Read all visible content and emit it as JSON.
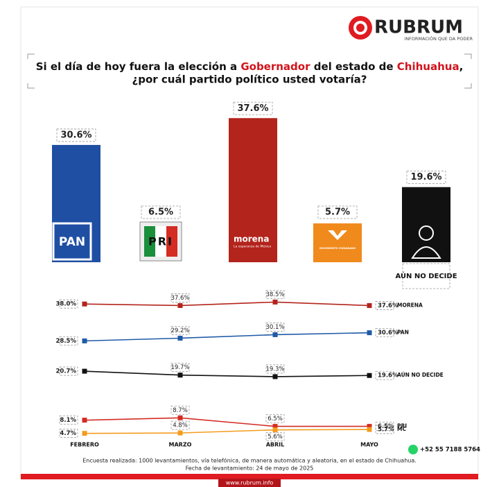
{
  "header": {
    "brand": "RUBRUM",
    "tagline": "INFORMACIÓN QUE DA PODER"
  },
  "title": {
    "line1": [
      "Si el día de hoy fuera la elección a ",
      "Gobernador",
      " del estado de ",
      "Chihuahua",
      ","
    ],
    "line2": "¿por cuál partido político usted votaría?"
  },
  "chart_data": [
    {
      "type": "bar",
      "categories": [
        "PAN",
        "PRI",
        "morena",
        "MOVIMIENTO CIUDADANO",
        "AÚN NO DECIDE"
      ],
      "values": [
        30.6,
        6.5,
        37.6,
        5.7,
        19.6
      ],
      "value_labels": [
        "30.6%",
        "6.5%",
        "37.6%",
        "5.7%",
        "19.6%"
      ],
      "colors": [
        "#1f4fa3",
        "#ffffff",
        "#b3241c",
        "#f08a1c",
        "#111111"
      ],
      "morena_tagline": "La esperanza de México",
      "ylim": [
        0,
        40
      ]
    },
    {
      "type": "line",
      "categories": [
        "FEBRERO",
        "MARZO",
        "ABRIL",
        "MAYO"
      ],
      "ylim": [
        0,
        40
      ],
      "series": [
        {
          "name": "MORENA",
          "color": "#b3241c",
          "values": [
            38.0,
            37.6,
            38.5,
            37.6
          ],
          "value_labels": [
            "38.0%",
            "37.6%",
            "38.5%",
            "37.6%"
          ]
        },
        {
          "name": "PAN",
          "color": "#1f5aa6",
          "values": [
            28.5,
            29.2,
            30.1,
            30.6
          ],
          "value_labels": [
            "28.5%",
            "29.2%",
            "30.1%",
            "30.6%"
          ]
        },
        {
          "name": "AÚN NO DECIDE",
          "color": "#111111",
          "values": [
            20.7,
            19.7,
            19.3,
            19.6
          ],
          "value_labels": [
            "20.7%",
            "19.7%",
            "19.3%",
            "19.6%"
          ]
        },
        {
          "name": "PRI",
          "color": "#d42b23",
          "values": [
            8.1,
            8.7,
            6.5,
            6.5
          ],
          "value_labels": [
            "8.1%",
            "8.7%",
            "6.5%",
            "6.5%"
          ]
        },
        {
          "name": "MC",
          "color": "#f39c1f",
          "values": [
            4.7,
            4.8,
            5.6,
            5.7
          ],
          "value_labels": [
            "4.7%",
            "4.8%",
            "5.6%",
            "5.7%"
          ]
        }
      ]
    }
  ],
  "footer": {
    "phone": "+52 55 7188 5764",
    "note": "Encuesta realizada: 1000 levantamientos, vía telefónica, de manera automática y aleatoria, en el estado de Chihuahua.",
    "date": "Fecha de levantamiento: 24 de mayo de 2025",
    "url": "www.rubrum.info"
  }
}
